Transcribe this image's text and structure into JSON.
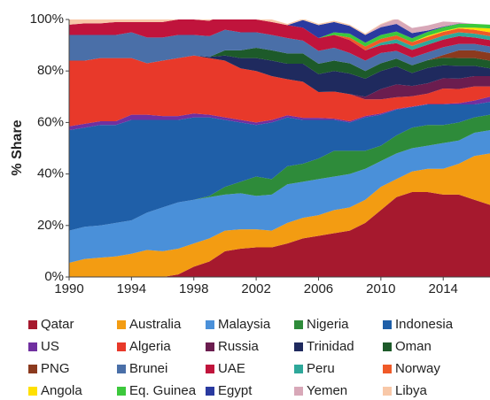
{
  "chart_data": {
    "type": "stacked-area",
    "y_label": "% Share",
    "x": [
      1990,
      1991,
      1992,
      1993,
      1994,
      1995,
      1996,
      1997,
      1998,
      1999,
      2000,
      2001,
      2002,
      2003,
      2004,
      2005,
      2006,
      2007,
      2008,
      2009,
      2010,
      2011,
      2012,
      2013,
      2014,
      2015,
      2016,
      2017
    ],
    "xlim": [
      1990,
      2017
    ],
    "xticks": [
      1990,
      1994,
      1998,
      2002,
      2006,
      2010,
      2014
    ],
    "ylim": [
      0,
      100
    ],
    "yticks": [
      {
        "value": 0,
        "label": "0%"
      },
      {
        "value": 20,
        "label": "20%"
      },
      {
        "value": 40,
        "label": "40%"
      },
      {
        "value": 60,
        "label": "60%"
      },
      {
        "value": 80,
        "label": "80%"
      },
      {
        "value": 100,
        "label": "100%"
      }
    ],
    "series": [
      {
        "name": "Qatar",
        "color": "#a6192e",
        "values": [
          0,
          0,
          0,
          0,
          0,
          0,
          0,
          1,
          4,
          6,
          10,
          11,
          11.5,
          11.5,
          13,
          15,
          16,
          17,
          18,
          21,
          26,
          31,
          33,
          33,
          32,
          32,
          30,
          28
        ]
      },
      {
        "name": "Australia",
        "color": "#f39c12",
        "values": [
          5.5,
          7,
          7.5,
          8,
          9,
          10.5,
          10,
          10,
          9,
          9,
          8,
          7.5,
          7,
          6.5,
          8,
          8,
          8,
          9,
          9,
          9,
          9,
          7,
          8,
          9,
          10,
          12,
          17,
          20
        ]
      },
      {
        "name": "Malaysia",
        "color": "#4a90d9",
        "values": [
          12.5,
          12.5,
          12.5,
          13,
          13,
          14.5,
          17,
          18,
          17,
          16,
          14,
          14,
          13,
          14,
          15,
          14,
          14,
          13,
          13,
          12,
          10,
          10,
          9,
          9,
          10,
          9,
          9,
          9
        ]
      },
      {
        "name": "Nigeria",
        "color": "#2e8b3a",
        "values": [
          0,
          0,
          0,
          0,
          0,
          0,
          0,
          0,
          0,
          0.5,
          3,
          4.5,
          7.5,
          6,
          7,
          7,
          8,
          10,
          9,
          7,
          6,
          7,
          8,
          8,
          7,
          7,
          6,
          6
        ]
      },
      {
        "name": "Indonesia",
        "color": "#1f5fa8",
        "values": [
          39,
          38.5,
          39,
          38,
          39,
          36,
          34,
          32,
          32,
          30.5,
          26,
          23,
          20,
          22,
          19,
          17,
          15,
          12,
          11,
          13,
          12,
          10,
          8,
          8,
          8,
          7,
          5,
          5
        ]
      },
      {
        "name": "US",
        "color": "#7030a0",
        "values": [
          1.5,
          1.5,
          1.5,
          1.5,
          2,
          2,
          1.5,
          1.5,
          1.5,
          1,
          1,
          1,
          1,
          1,
          0.8,
          0.8,
          0.8,
          0.5,
          0.5,
          0.5,
          0.5,
          0.3,
          0.2,
          0.2,
          0.2,
          0.5,
          1.5,
          2
        ]
      },
      {
        "name": "Algeria",
        "color": "#e8392a",
        "values": [
          25.5,
          24.5,
          24.5,
          24.5,
          22,
          20,
          21.5,
          22.5,
          22.5,
          22,
          22,
          20,
          20,
          17,
          14,
          14,
          10,
          10.5,
          10.5,
          6.5,
          5.5,
          4.5,
          4,
          4,
          6,
          5.5,
          5.5,
          4
        ]
      },
      {
        "name": "Russia",
        "color": "#6b1d4f",
        "values": [
          0,
          0,
          0,
          0,
          0,
          0,
          0,
          0,
          0,
          0,
          0,
          0,
          0,
          0,
          0,
          0,
          0,
          0,
          0,
          1,
          4,
          5,
          4,
          4,
          4,
          4,
          4,
          4
        ]
      },
      {
        "name": "Trinidad",
        "color": "#1f2a5e",
        "values": [
          0,
          0,
          0,
          0,
          0,
          0,
          0,
          0,
          0,
          0.5,
          2,
          4,
          5,
          6,
          6,
          7,
          7,
          8,
          8,
          7,
          7,
          7,
          5,
          6,
          5,
          5,
          4,
          3
        ]
      },
      {
        "name": "Oman",
        "color": "#1d5a2a",
        "values": [
          0,
          0,
          0,
          0,
          0,
          0,
          0,
          0,
          0,
          0,
          2,
          3,
          4,
          4,
          4,
          4,
          4,
          4,
          4,
          3,
          3,
          3,
          3,
          3,
          3,
          3,
          3,
          3
        ]
      },
      {
        "name": "PNG",
        "color": "#8b3a1e",
        "values": [
          0,
          0,
          0,
          0,
          0,
          0,
          0,
          0,
          0,
          0,
          0,
          0,
          0,
          0,
          0,
          0,
          0,
          0,
          0,
          0,
          0,
          0,
          0,
          0,
          1,
          3,
          3,
          3
        ]
      },
      {
        "name": "Brunei",
        "color": "#4a6fa8",
        "values": [
          10,
          10,
          9,
          9,
          10,
          10,
          9,
          9,
          8,
          8,
          8,
          7,
          6,
          6,
          6,
          5,
          5,
          5,
          4,
          4,
          4,
          3,
          3,
          3,
          3,
          2.5,
          2.5,
          2.5
        ]
      },
      {
        "name": "UAE",
        "color": "#c0143c",
        "values": [
          4,
          4.5,
          4.5,
          5,
          4,
          6,
          6,
          6,
          6,
          6,
          6,
          5,
          5,
          5,
          5,
          5,
          5,
          5,
          5,
          4,
          3,
          3,
          3,
          3,
          3,
          3,
          2.5,
          2.5
        ]
      },
      {
        "name": "Peru",
        "color": "#2ea89a",
        "values": [
          0,
          0,
          0,
          0,
          0,
          0,
          0,
          0,
          0,
          0,
          0,
          0,
          0,
          0,
          0,
          0,
          0,
          0,
          0,
          0,
          1,
          1.5,
          1.5,
          1.5,
          1.5,
          1.5,
          1.5,
          1.5
        ]
      },
      {
        "name": "Norway",
        "color": "#f05a28",
        "values": [
          0,
          0,
          0,
          0,
          0,
          0,
          0,
          0,
          0,
          0,
          0,
          0,
          0,
          0,
          0,
          0,
          0,
          0,
          1,
          1.5,
          1.5,
          1.5,
          1.5,
          1.5,
          1.5,
          1.5,
          1.5,
          1.5
        ]
      },
      {
        "name": "Angola",
        "color": "#ffe000",
        "values": [
          0,
          0,
          0,
          0,
          0,
          0,
          0,
          0,
          0,
          0,
          0,
          0,
          0,
          0,
          0,
          0,
          0,
          0,
          0,
          0,
          0,
          0,
          0,
          0.5,
          0.3,
          0.3,
          0.8,
          1.5
        ]
      },
      {
        "name": "Eq. Guinea",
        "color": "#3cc83c",
        "values": [
          0,
          0,
          0,
          0,
          0,
          0,
          0,
          0,
          0,
          0,
          0,
          0,
          0,
          0,
          0,
          0,
          0,
          1,
          1.5,
          1.5,
          1.5,
          1.5,
          1.5,
          1.5,
          1.5,
          1.5,
          1.5,
          1.5
        ]
      },
      {
        "name": "Egypt",
        "color": "#2a3aa0",
        "values": [
          0,
          0,
          0,
          0,
          0,
          0,
          0,
          0,
          0,
          0,
          0,
          0,
          0,
          0,
          0,
          3,
          5,
          4,
          3,
          3,
          3,
          3,
          2,
          0.5,
          0.2,
          0.1,
          0,
          0
        ]
      },
      {
        "name": "Yemen",
        "color": "#d8a8b8",
        "values": [
          0,
          0,
          0,
          0,
          0,
          0,
          0,
          0,
          0,
          0,
          0,
          0,
          0,
          0,
          0,
          0,
          0,
          0,
          0,
          0,
          1,
          2,
          2,
          2,
          2,
          0.5,
          0,
          0
        ]
      },
      {
        "name": "Libya",
        "color": "#f8c8a8",
        "values": [
          2,
          2,
          2,
          1.5,
          1.5,
          1,
          1,
          1,
          1,
          1,
          1,
          1,
          1,
          1,
          0.5,
          0.5,
          0.5,
          0.5,
          0.5,
          0.5,
          0.3,
          0.2,
          0,
          0,
          0,
          0,
          0,
          0
        ]
      }
    ]
  }
}
